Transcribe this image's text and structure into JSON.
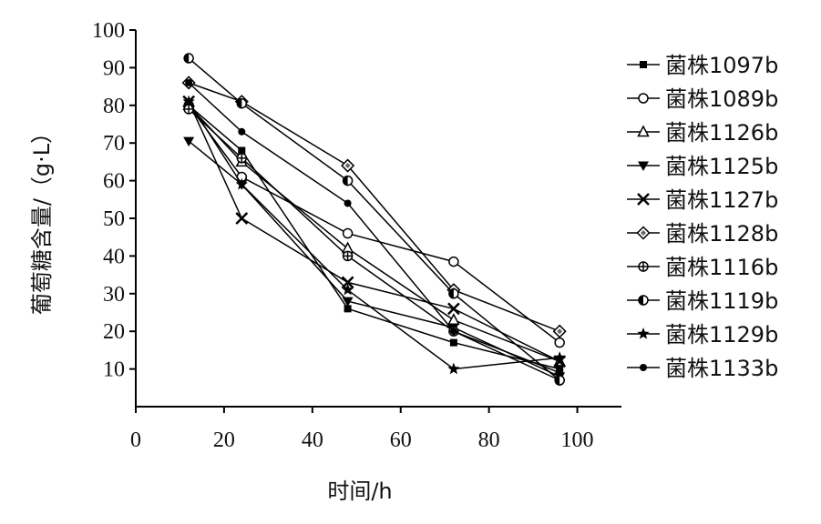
{
  "chart_data": {
    "type": "line",
    "title": "",
    "xlabel": "时间/h",
    "ylabel": "葡萄糖含量/（g·L）",
    "xlim": [
      0,
      110
    ],
    "ylim": [
      0,
      100
    ],
    "xticks": [
      0,
      20,
      40,
      60,
      80,
      100
    ],
    "yticks": [
      10,
      20,
      30,
      40,
      50,
      60,
      70,
      80,
      90,
      100
    ],
    "grid": false,
    "legend_position": "right",
    "x": [
      12,
      24,
      48,
      72,
      96
    ],
    "series": [
      {
        "name": "菌株1097b",
        "marker": "square-filled",
        "values": [
          80,
          68,
          26,
          17,
          10
        ]
      },
      {
        "name": "菌株1089b",
        "marker": "circle-open",
        "values": [
          80,
          61,
          46,
          38.5,
          17
        ]
      },
      {
        "name": "菌株1126b",
        "marker": "triangle-open",
        "values": [
          80,
          65,
          42,
          23,
          12
        ]
      },
      {
        "name": "菌株1125b",
        "marker": "triangle-down-filled",
        "values": [
          70.5,
          59,
          28,
          21,
          8
        ]
      },
      {
        "name": "菌株1127b",
        "marker": "x-cross",
        "values": [
          81,
          50,
          33,
          26,
          12
        ]
      },
      {
        "name": "菌株1128b",
        "marker": "diamond-open",
        "values": [
          86,
          81,
          64,
          31,
          20
        ]
      },
      {
        "name": "菌株1116b",
        "marker": "crossed-circle",
        "values": [
          79,
          66,
          40,
          20,
          7
        ]
      },
      {
        "name": "菌株1119b",
        "marker": "half-circle",
        "values": [
          92.5,
          80.5,
          60,
          30,
          7
        ]
      },
      {
        "name": "菌株1129b",
        "marker": "star",
        "values": [
          81,
          59,
          31,
          10,
          13
        ]
      },
      {
        "name": "菌株1133b",
        "marker": "circle-filled",
        "values": [
          86,
          73,
          54,
          20,
          9
        ]
      }
    ]
  }
}
